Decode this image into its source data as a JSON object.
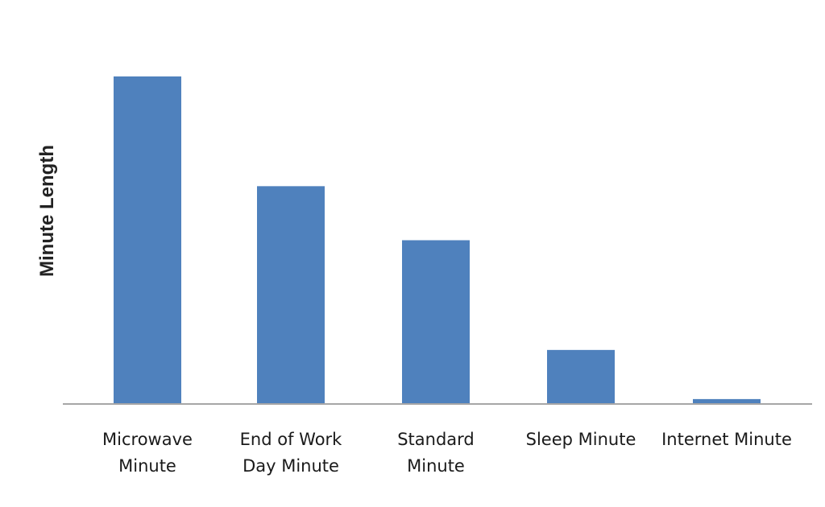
{
  "chart_data": {
    "type": "bar",
    "categories": [
      [
        "Microwave",
        "Minute"
      ],
      [
        "End of Work",
        "Day Minute"
      ],
      [
        "Standard",
        "Minute"
      ],
      [
        "Sleep Minute"
      ],
      [
        "Internet Minute"
      ]
    ],
    "values": [
      100,
      66.5,
      50,
      16.5,
      1.5
    ],
    "ylim": [
      0,
      100
    ],
    "title": "",
    "xlabel": "",
    "ylabel": "Minute Length",
    "grid": false,
    "legend": "none",
    "colors": {
      "bar": "#4f81bd",
      "axis": "#a6a6a6"
    }
  }
}
